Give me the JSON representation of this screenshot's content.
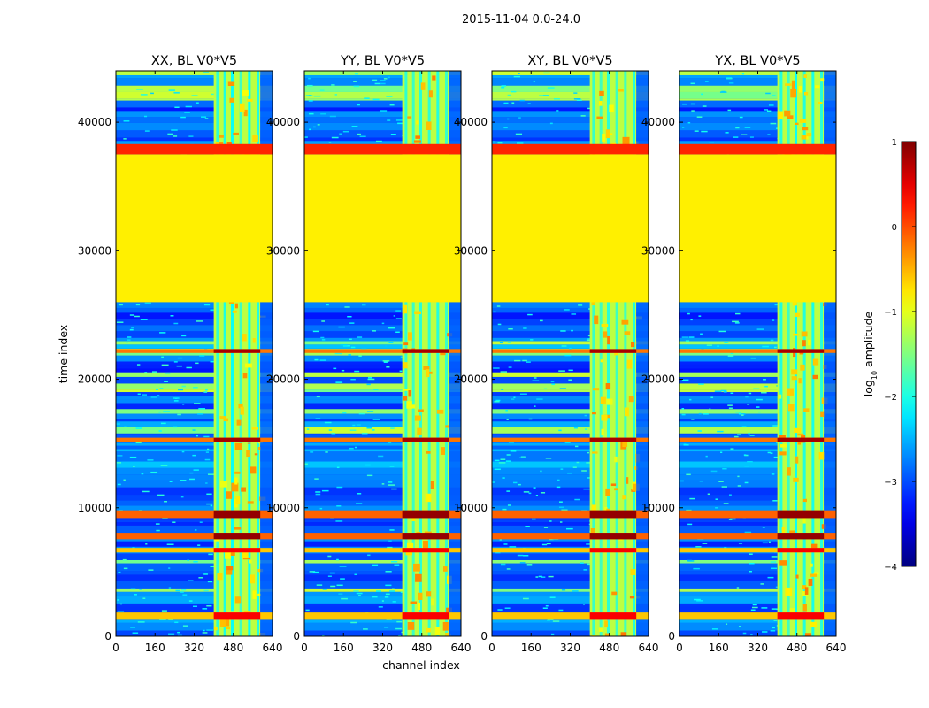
{
  "figure": {
    "suptitle": "2015-11-04 0.0-24.0"
  },
  "chart_data": {
    "type": "heatmap",
    "suptitle": "2015-11-04 0.0-24.0",
    "xlabel": "channel index",
    "ylabel": "time index",
    "xlim": [
      0,
      640
    ],
    "ylim": [
      0,
      44000
    ],
    "xticks": [
      0,
      160,
      320,
      480,
      640
    ],
    "yticks": [
      0,
      10000,
      20000,
      30000,
      40000
    ],
    "panels": [
      {
        "title": "XX, BL V0*V5"
      },
      {
        "title": "YY, BL V0*V5"
      },
      {
        "title": "XY, BL V0*V5"
      },
      {
        "title": "YX, BL V0*V5"
      }
    ],
    "colorbar": {
      "label": "log",
      "label_sub": "10",
      "label_rest": " amplitude",
      "vmin": -4,
      "vmax": 1,
      "ticks": [
        1,
        0,
        -1,
        -2,
        -3,
        -4
      ],
      "tick_labels": [
        "1",
        "0",
        "−1",
        "−2",
        "−3",
        "−4"
      ],
      "colormap": "jet"
    },
    "features": {
      "constant_block": {
        "t_start": 26000,
        "t_end": 37500,
        "log_amp": -0.8
      },
      "band_edges": [
        37500,
        38300
      ],
      "band_log_amp": 0.2,
      "rfi_channels": [
        400,
        590
      ],
      "strong_rows": [
        {
          "t": 9500,
          "h": 600,
          "log_amp": 0.5
        },
        {
          "t": 7800,
          "h": 500,
          "log_amp": 0.5
        },
        {
          "t": 6700,
          "h": 350,
          "log_amp": 0.0
        },
        {
          "t": 15300,
          "h": 300,
          "log_amp": 0.4
        },
        {
          "t": 22200,
          "h": 300,
          "log_amp": 0.4
        },
        {
          "t": 1600,
          "h": 500,
          "log_amp": 0.0
        }
      ]
    }
  }
}
